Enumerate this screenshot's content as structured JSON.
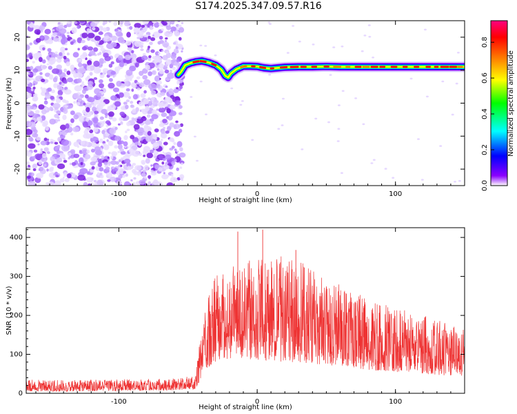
{
  "title": "S174.2025.347.09.57.R16",
  "chart_data": [
    {
      "type": "heatmap",
      "name": "spectrogram",
      "xlabel": "Height of straight line (km)",
      "ylabel": "Frequency (Hz)",
      "xlim": [
        -167,
        150
      ],
      "ylim": [
        -25,
        25
      ],
      "xticks": [
        -100,
        0,
        100
      ],
      "yticks": [
        -20,
        -10,
        0,
        10,
        20
      ],
      "colorbar": {
        "label": "Normalized spectral amplitude",
        "range": [
          0.0,
          0.92
        ],
        "ticks": [
          0.0,
          0.2,
          0.4,
          0.6,
          0.8
        ],
        "colors": [
          "#ffffff",
          "#8b00ff",
          "#0000ff",
          "#00ffff",
          "#00ff00",
          "#ffff00",
          "#ff8000",
          "#ff0000",
          "#ff0080"
        ]
      },
      "noise_region": {
        "x_from": -167,
        "x_to": -54,
        "freq_from": -25,
        "freq_to": 25,
        "amplitude": "random 0.0-0.3"
      },
      "signal_trace": {
        "x": [
          -57,
          -55,
          -52,
          -48,
          -44,
          -40,
          -35,
          -30,
          -26,
          -23,
          -21,
          -19,
          -15,
          -10,
          -5,
          0,
          5,
          10,
          20,
          30,
          40,
          50,
          60,
          70,
          80,
          90,
          100,
          110,
          120,
          130,
          140,
          150
        ],
        "freq": [
          8.6,
          9.5,
          11.5,
          12.2,
          12.6,
          12.8,
          12.3,
          11.5,
          10.2,
          8.3,
          7.8,
          9.0,
          10.3,
          11.2,
          11.2,
          11.1,
          10.7,
          10.5,
          10.9,
          11.0,
          11.0,
          11.1,
          11.0,
          11.0,
          11.0,
          11.0,
          11.0,
          11.0,
          11.0,
          11.0,
          11.0,
          11.0
        ],
        "peak_amplitude": 0.92
      }
    },
    {
      "type": "line",
      "name": "snr",
      "xlabel": "Height of straight line (km)",
      "ylabel": "SNR (10 * v/v)",
      "xlim": [
        -167,
        150
      ],
      "ylim": [
        0,
        425
      ],
      "xticks": [
        -100,
        0,
        100
      ],
      "yticks": [
        0,
        100,
        200,
        300,
        400
      ],
      "color": "#ee3333",
      "envelope": {
        "x": [
          -167,
          -120,
          -60,
          -45,
          -42,
          -38,
          -30,
          -20,
          -10,
          0,
          10,
          20,
          30,
          40,
          60,
          80,
          100,
          120,
          140,
          150
        ],
        "max": [
          35,
          35,
          38,
          45,
          120,
          240,
          300,
          330,
          340,
          350,
          350,
          355,
          340,
          320,
          280,
          250,
          220,
          200,
          180,
          165
        ],
        "min": [
          5,
          5,
          8,
          10,
          25,
          60,
          80,
          90,
          90,
          85,
          85,
          80,
          80,
          75,
          70,
          60,
          55,
          50,
          45,
          45
        ]
      },
      "spikes": [
        {
          "x": -14,
          "y": 415
        },
        {
          "x": 4,
          "y": 420
        },
        {
          "x": 28,
          "y": 368
        }
      ]
    }
  ]
}
